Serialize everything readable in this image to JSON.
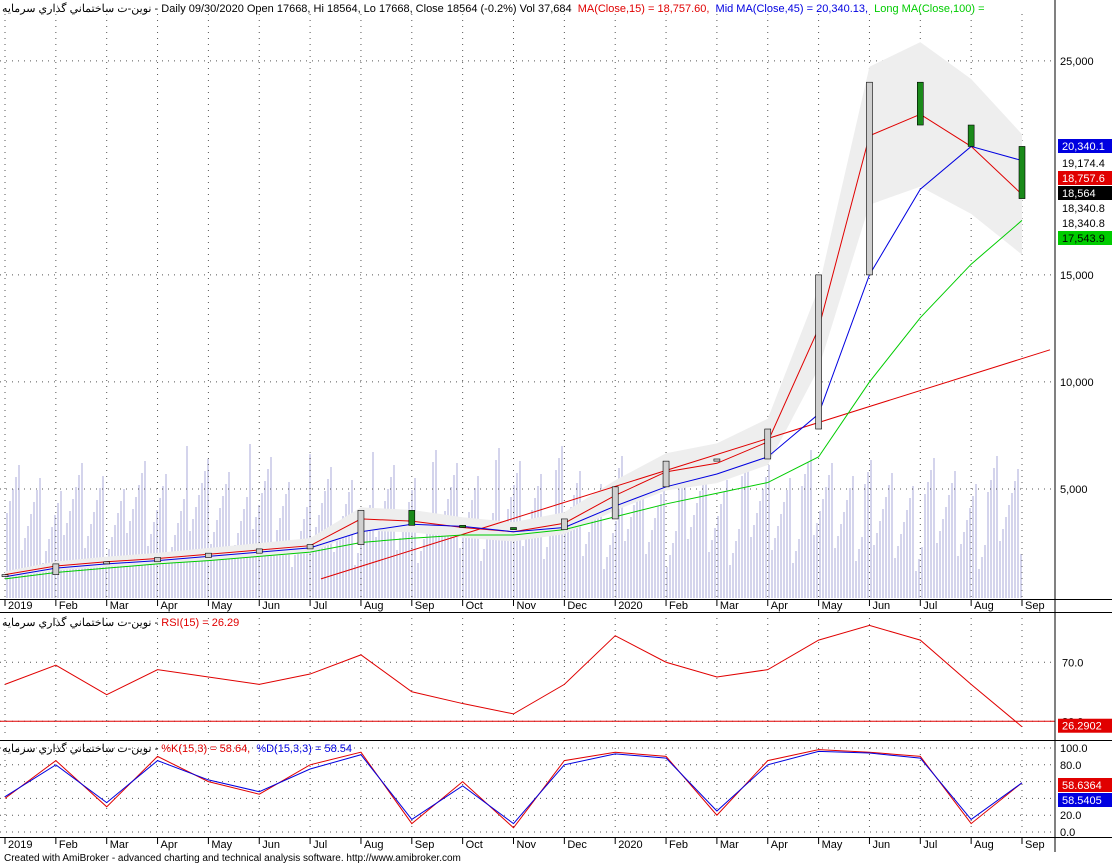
{
  "header": {
    "main_prefix": "نوین-ت ساختماني گذاري سرمايه - Daily 09/30/2020 Open 17668, Hi 18564, Lo 17668, Close 18564 (-0.2%) Vol 37,684",
    "ma15": "MA(Close,15) = 18,757.60,",
    "ma45": "Mid MA(Close,45) = 20,340.13,",
    "ma100": "Long MA(Close,100) ="
  },
  "rsi_header": {
    "prefix": "نوین-ت ساختماني گذاري سرمايه - ",
    "label": "RSI(15) = 26.29"
  },
  "stoch_header": {
    "prefix": "نوین-ت ساختماني گذاري سرمايه - ",
    "k": "%K(15,3) = 58.64,",
    "d": "%D(15,3,3) = 58.54"
  },
  "footer": "Created with AmiBroker - advanced charting and technical analysis software. http://www.amibroker.com",
  "colors": {
    "ma15": "#e00000",
    "ma45": "#0000e0",
    "ma100": "#00cc00",
    "trend": "#e00000",
    "volume": "#d4d4ec",
    "envelope": "#eeeeee",
    "up_candle": "#d0d0d0",
    "down_candle": "#1a8a1a"
  },
  "price_axis": {
    "ticks": [
      "25,000",
      "15,000",
      "10,000",
      "5,000"
    ]
  },
  "price_badges": [
    "20,340.1",
    "19,174.4",
    "18,757.6",
    "18,564",
    "18,340.8",
    "18,340.8",
    "17,543.9"
  ],
  "rsi_axis": {
    "ticks": [
      "70.0",
      "30.0"
    ],
    "badge": "26.2902"
  },
  "stoch_axis": {
    "ticks": [
      "100.0",
      "80.0",
      "60.0",
      "40.0",
      "20.0",
      "0.0"
    ],
    "badge_k": "58.6364",
    "badge_d": "58.5405"
  },
  "x_axis_labels": [
    "2019",
    "Feb",
    "Mar",
    "Apr",
    "May",
    "Jun",
    "Jul",
    "Aug",
    "Sep",
    "Oct",
    "Nov",
    "Dec",
    "2020",
    "Feb",
    "Mar",
    "Apr",
    "May",
    "Jun",
    "Jul",
    "Aug",
    "Sep"
  ],
  "chart_data": [
    {
      "type": "line",
      "title": "Daily 09/30/2020 Open 17668, Hi 18564, Lo 17668, Close 18564 (-0.2%) Vol 37,684",
      "x": [
        "2019-01",
        "2019-02",
        "2019-03",
        "2019-04",
        "2019-05",
        "2019-06",
        "2019-07",
        "2019-08",
        "2019-09",
        "2019-10",
        "2019-11",
        "2019-12",
        "2020-01",
        "2020-02",
        "2020-03",
        "2020-04",
        "2020-05",
        "2020-06",
        "2020-07",
        "2020-08",
        "2020-09"
      ],
      "series": [
        {
          "name": "Close",
          "values": [
            1000,
            1500,
            1600,
            1800,
            2000,
            2200,
            2400,
            4000,
            3300,
            3200,
            3100,
            3600,
            5100,
            6300,
            6400,
            7800,
            15000,
            24000,
            22000,
            21000,
            18564
          ]
        },
        {
          "name": "MA(Close,15)",
          "values": [
            1000,
            1400,
            1600,
            1750,
            1950,
            2150,
            2350,
            3600,
            3500,
            3200,
            3000,
            3400,
            4700,
            5800,
            6200,
            7200,
            12500,
            21500,
            22500,
            21000,
            18757.6
          ]
        },
        {
          "name": "Mid MA(Close,45)",
          "values": [
            900,
            1300,
            1500,
            1650,
            1850,
            2050,
            2250,
            3000,
            3350,
            3250,
            3000,
            3200,
            4200,
            5100,
            5700,
            6500,
            8500,
            15000,
            19000,
            21000,
            20340.13
          ]
        },
        {
          "name": "Long MA(Close,100)",
          "values": [
            800,
            1100,
            1300,
            1500,
            1650,
            1850,
            2050,
            2500,
            2700,
            2850,
            2850,
            3100,
            3700,
            4300,
            4800,
            5300,
            6500,
            10000,
            13000,
            15500,
            17543.9
          ]
        }
      ],
      "ylim": [
        0,
        27000
      ],
      "grid": true
    },
    {
      "type": "line",
      "title": "RSI(15) = 26.29",
      "x": [
        "2019-01",
        "2019-02",
        "2019-03",
        "2019-04",
        "2019-05",
        "2019-06",
        "2019-07",
        "2019-08",
        "2019-09",
        "2019-10",
        "2019-11",
        "2019-12",
        "2020-01",
        "2020-02",
        "2020-03",
        "2020-04",
        "2020-05",
        "2020-06",
        "2020-07",
        "2020-08",
        "2020-09"
      ],
      "series": [
        {
          "name": "RSI(15)",
          "values": [
            55,
            68,
            48,
            65,
            60,
            55,
            62,
            75,
            50,
            42,
            35,
            55,
            88,
            70,
            60,
            65,
            85,
            95,
            85,
            55,
            26.29
          ]
        }
      ],
      "ylim": [
        20,
        100
      ],
      "grid": true
    },
    {
      "type": "line",
      "title": "%K(15,3) = 58.64, %D(15,3,3) = 58.54",
      "x": [
        "2019-01",
        "2019-02",
        "2019-03",
        "2019-04",
        "2019-05",
        "2019-06",
        "2019-07",
        "2019-08",
        "2019-09",
        "2019-10",
        "2019-11",
        "2019-12",
        "2020-01",
        "2020-02",
        "2020-03",
        "2020-04",
        "2020-05",
        "2020-06",
        "2020-07",
        "2020-08",
        "2020-09"
      ],
      "series": [
        {
          "name": "%K(15,3)",
          "values": [
            40,
            85,
            30,
            90,
            60,
            45,
            80,
            95,
            10,
            60,
            5,
            85,
            95,
            90,
            20,
            85,
            98,
            95,
            90,
            10,
            58.64
          ]
        },
        {
          "name": "%D(15,3,3)",
          "values": [
            42,
            80,
            35,
            85,
            62,
            48,
            75,
            92,
            15,
            55,
            10,
            80,
            93,
            88,
            25,
            80,
            96,
            94,
            88,
            15,
            58.54
          ]
        }
      ],
      "ylim": [
        0,
        100
      ],
      "grid": true
    }
  ]
}
